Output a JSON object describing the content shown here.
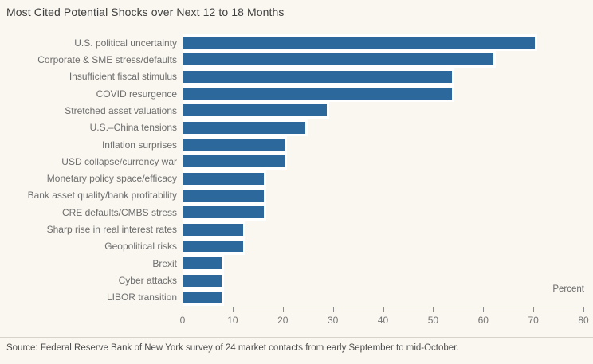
{
  "chart_data": {
    "type": "bar",
    "orientation": "horizontal",
    "title": "Most Cited Potential Shocks over Next 12 to 18 Months",
    "categories": [
      "U.S. political uncertainty",
      "Corporate & SME stress/defaults",
      "Insufficient fiscal stimulus",
      "COVID resurgence",
      "Stretched asset valuations",
      "U.S.–China tensions",
      "Inflation surprises",
      "USD collapse/currency war",
      "Monetary policy space/efficacy",
      "Bank asset quality/bank profitability",
      "CRE defaults/CMBS stress",
      "Sharp rise in real interest rates",
      "Geopolitical risks",
      "Brexit",
      "Cyber attacks",
      "LIBOR transition"
    ],
    "values": [
      70.8,
      62.5,
      54.2,
      54.2,
      29.2,
      25.0,
      20.8,
      20.8,
      16.7,
      16.7,
      16.7,
      12.5,
      12.5,
      8.3,
      8.3,
      8.3
    ],
    "xlabel": "Percent",
    "ylabel": "",
    "xlim": [
      0,
      80
    ],
    "xticks": [
      0,
      10,
      20,
      30,
      40,
      50,
      60,
      70,
      80
    ],
    "grid": false,
    "legend_position": "none",
    "bar_color": "#2c689c",
    "bar_outline_color": "#ffffff",
    "background_color": "#faf7f0"
  },
  "source_note": "Source: Federal Reserve Bank of New York survey of 24 market contacts from early September to mid-October."
}
